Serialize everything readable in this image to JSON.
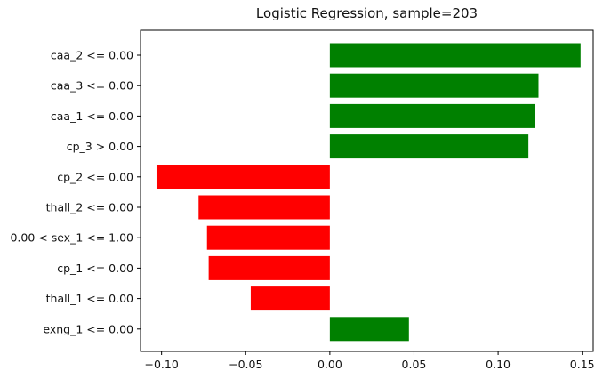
{
  "chart_data": {
    "type": "bar",
    "orientation": "horizontal",
    "title": "Logistic Regression, sample=203",
    "xlabel": "",
    "ylabel": "",
    "xlim": [
      -0.1125,
      0.1565
    ],
    "grid": false,
    "categories": [
      "caa_2 <= 0.00",
      "caa_3 <= 0.00",
      "caa_1 <= 0.00",
      "cp_3 > 0.00",
      "cp_2 <= 0.00",
      "thall_2 <= 0.00",
      "0.00 < sex_1 <= 1.00",
      "cp_1 <= 0.00",
      "thall_1 <= 0.00",
      "exng_1 <= 0.00"
    ],
    "values": [
      0.149,
      0.124,
      0.122,
      0.118,
      -0.103,
      -0.078,
      -0.073,
      -0.072,
      -0.047,
      0.047
    ],
    "xticks": [
      -0.1,
      -0.05,
      0.0,
      0.05,
      0.1,
      0.15
    ],
    "xtick_labels": [
      "−0.10",
      "−0.05",
      "0.00",
      "0.05",
      "0.10",
      "0.15"
    ],
    "colors": {
      "positive": "#008000",
      "negative": "#ff0000",
      "axis": "#000000",
      "text": "#111111"
    }
  }
}
